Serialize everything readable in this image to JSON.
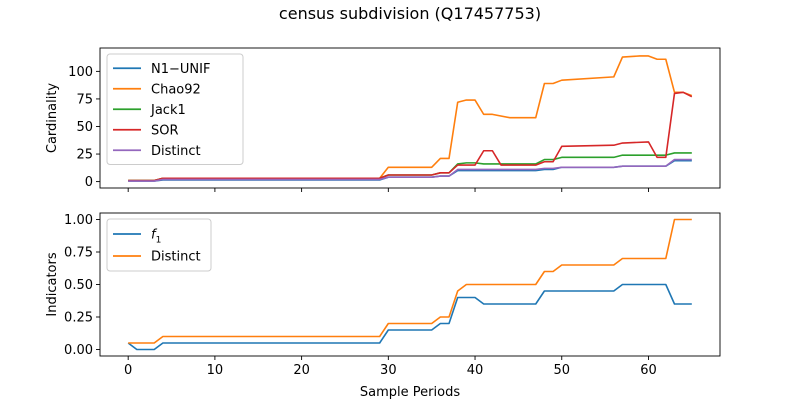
{
  "figure_title": "census subdivision (Q17457753)",
  "xlabel": "Sample Periods",
  "chart_data": [
    {
      "type": "line",
      "ylabel": "Cardinality",
      "xlim": [
        -3.25,
        68.25
      ],
      "ylim": [
        -5.8,
        121.2
      ],
      "xticks": [
        0,
        10,
        20,
        30,
        40,
        50,
        60
      ],
      "show_xtick_labels": false,
      "yticks": [
        0,
        25,
        50,
        75,
        100
      ],
      "yticklabels": [
        "0",
        "25",
        "50",
        "75",
        "100"
      ],
      "grid": false,
      "legend": "upper-left",
      "series": [
        {
          "name": "N1−UNIF",
          "color": "#1f77b4",
          "x": [
            0,
            3,
            4,
            29,
            30,
            35,
            36,
            37,
            38,
            47,
            48,
            49,
            50,
            56,
            57,
            62,
            63,
            65
          ],
          "y": [
            0.5,
            0.5,
            1.5,
            1.5,
            4,
            4,
            5,
            5,
            10,
            10,
            11,
            11,
            13,
            13,
            14,
            14,
            19,
            19
          ]
        },
        {
          "name": "Chao92",
          "color": "#ff7f0e",
          "x": [
            0,
            3,
            4,
            29,
            30,
            35,
            36,
            37,
            38,
            39,
            40,
            41,
            42,
            44,
            47,
            48,
            49,
            50,
            56,
            57,
            59,
            60,
            61,
            62,
            63,
            64,
            65
          ],
          "y": [
            1,
            1,
            3,
            3,
            13,
            13,
            21,
            21,
            72,
            74,
            74,
            61,
            61,
            58,
            58,
            89,
            89,
            92,
            95,
            113,
            114,
            114,
            111,
            111,
            81,
            81,
            78
          ]
        },
        {
          "name": "Jack1",
          "color": "#2ca02c",
          "x": [
            0,
            3,
            4,
            29,
            30,
            35,
            36,
            37,
            38,
            39,
            40,
            41,
            47,
            48,
            49,
            50,
            56,
            57,
            62,
            63,
            65
          ],
          "y": [
            1,
            1,
            3,
            3,
            6,
            6,
            8,
            8,
            16,
            17,
            17,
            16,
            16,
            20,
            20,
            22,
            22,
            24,
            24,
            26,
            26
          ]
        },
        {
          "name": "SOR",
          "color": "#d62728",
          "x": [
            0,
            3,
            4,
            29,
            30,
            35,
            36,
            37,
            38,
            40,
            41,
            42,
            43,
            47,
            48,
            49,
            50,
            56,
            57,
            60,
            61,
            62,
            63,
            64,
            65
          ],
          "y": [
            1,
            1,
            3,
            3,
            6,
            6,
            8,
            8,
            15,
            15,
            28,
            28,
            15,
            15,
            18,
            18,
            32,
            33,
            35,
            36,
            22,
            22,
            80,
            81,
            77
          ]
        },
        {
          "name": "Distinct",
          "color": "#9467bd",
          "x": [
            0,
            3,
            4,
            29,
            30,
            35,
            36,
            37,
            38,
            47,
            48,
            49,
            50,
            56,
            57,
            62,
            63,
            65
          ],
          "y": [
            0.5,
            0.5,
            2,
            2,
            4,
            4,
            5,
            5,
            11,
            11,
            12,
            12,
            13,
            13,
            14,
            14,
            20,
            20
          ]
        }
      ]
    },
    {
      "type": "line",
      "ylabel": "Indicators",
      "xlim": [
        -3.25,
        68.25
      ],
      "ylim": [
        -0.05,
        1.05
      ],
      "xticks": [
        0,
        10,
        20,
        30,
        40,
        50,
        60
      ],
      "xticklabels": [
        "0",
        "10",
        "20",
        "30",
        "40",
        "50",
        "60"
      ],
      "show_xtick_labels": true,
      "yticks": [
        0,
        0.25,
        0.5,
        0.75,
        1.0
      ],
      "yticklabels": [
        "0.00",
        "0.25",
        "0.50",
        "0.75",
        "1.00"
      ],
      "grid": false,
      "legend": "upper-left",
      "series": [
        {
          "name": "f1",
          "name_main": "f",
          "name_sub": "1",
          "color": "#1f77b4",
          "x": [
            0,
            1,
            3,
            4,
            29,
            30,
            35,
            36,
            37,
            38,
            40,
            41,
            47,
            48,
            56,
            57,
            62,
            63,
            65
          ],
          "y": [
            0.05,
            0,
            0,
            0.05,
            0.05,
            0.15,
            0.15,
            0.2,
            0.2,
            0.4,
            0.4,
            0.35,
            0.35,
            0.45,
            0.45,
            0.5,
            0.5,
            0.35,
            0.35
          ]
        },
        {
          "name": "Distinct",
          "color": "#ff7f0e",
          "x": [
            0,
            3,
            4,
            29,
            30,
            35,
            36,
            37,
            38,
            39,
            47,
            48,
            49,
            50,
            56,
            57,
            62,
            63,
            65
          ],
          "y": [
            0.05,
            0.05,
            0.1,
            0.1,
            0.2,
            0.2,
            0.25,
            0.25,
            0.45,
            0.5,
            0.5,
            0.6,
            0.6,
            0.65,
            0.65,
            0.7,
            0.7,
            1.0,
            1.0
          ]
        }
      ]
    }
  ]
}
